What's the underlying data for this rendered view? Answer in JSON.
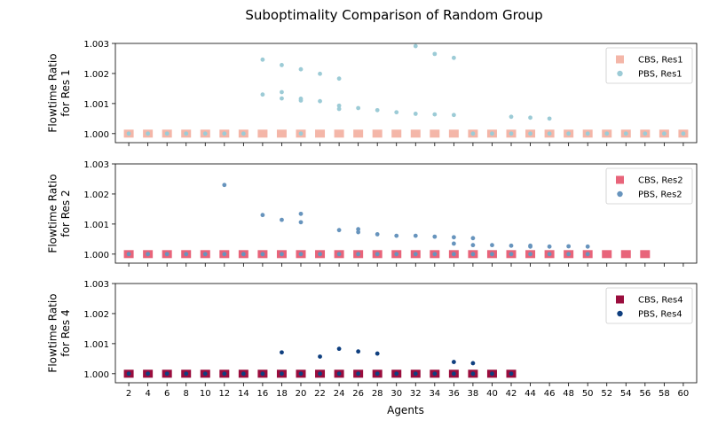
{
  "title": "Suboptimality Comparison of Random Group",
  "chart_data": {
    "type": "scatter",
    "title": "Suboptimality Comparison of Random Group",
    "xlabel": "Agents",
    "x_ticks": [
      2,
      4,
      6,
      8,
      10,
      12,
      14,
      16,
      18,
      20,
      22,
      24,
      26,
      28,
      30,
      32,
      34,
      36,
      38,
      40,
      42,
      44,
      46,
      48,
      50,
      52,
      54,
      56,
      58,
      60
    ],
    "ylim": [
      0.9997,
      1.003
    ],
    "y_ticks": [
      "1.000",
      "1.001",
      "1.002",
      "1.003"
    ],
    "legend_position": "top-right",
    "panels": [
      {
        "ylabel": [
          "Flowtime Ratio",
          "for Res 1"
        ],
        "series": [
          {
            "name": "CBS, Res1",
            "marker": "square",
            "color": "#f4b6a8",
            "x": [
              2,
              4,
              6,
              8,
              10,
              12,
              14,
              16,
              18,
              20,
              22,
              24,
              26,
              28,
              30,
              32,
              34,
              36,
              38,
              40,
              42,
              44,
              46,
              48,
              50,
              52,
              54,
              56,
              58,
              60
            ],
            "y": [
              1,
              1,
              1,
              1,
              1,
              1,
              1,
              1,
              1,
              1,
              1,
              1,
              1,
              1,
              1,
              1,
              1,
              1,
              1,
              1,
              1,
              1,
              1,
              1,
              1,
              1,
              1,
              1,
              1,
              1
            ]
          },
          {
            "name": "PBS, Res1",
            "marker": "circle",
            "color": "#9ccbd6",
            "x": [
              2,
              4,
              6,
              8,
              10,
              12,
              14,
              16,
              16,
              18,
              18,
              18,
              20,
              20,
              20,
              20,
              22,
              22,
              24,
              24,
              24,
              26,
              28,
              30,
              32,
              32,
              34,
              34,
              36,
              36,
              38,
              40,
              42,
              42,
              44,
              44,
              46,
              46,
              48,
              50,
              52,
              54,
              56,
              58,
              60
            ],
            "y": [
              1,
              1,
              1,
              1,
              1,
              1,
              1,
              1.00246,
              1.0013,
              1.00228,
              1.00138,
              1.00117,
              1.00214,
              1.00116,
              1.0011,
              1,
              1.00199,
              1.00108,
              1.00183,
              1.00093,
              1.00082,
              1.00085,
              1.00078,
              1.00071,
              1.00291,
              1.00066,
              1.00265,
              1.00064,
              1.00252,
              1.00062,
              1,
              1,
              1.00056,
              1,
              1.00053,
              1,
              1.0005,
              1,
              1,
              1,
              1,
              1,
              1,
              1,
              1
            ]
          }
        ]
      },
      {
        "ylabel": [
          "Flowtime Ratio",
          "for Res 2"
        ],
        "series": [
          {
            "name": "CBS, Res2",
            "marker": "square",
            "color": "#e8647a",
            "x": [
              2,
              4,
              6,
              8,
              10,
              12,
              14,
              16,
              18,
              20,
              22,
              24,
              26,
              28,
              30,
              32,
              34,
              36,
              38,
              40,
              42,
              44,
              46,
              48,
              50,
              52,
              54,
              56
            ],
            "y": [
              1,
              1,
              1,
              1,
              1,
              1,
              1,
              1,
              1,
              1,
              1,
              1,
              1,
              1,
              1,
              1,
              1,
              1,
              1,
              1,
              1,
              1,
              1,
              1,
              1,
              1,
              1,
              1
            ]
          },
          {
            "name": "PBS, Res2",
            "marker": "circle",
            "color": "#6794bd",
            "x": [
              2,
              4,
              6,
              8,
              10,
              12,
              12,
              14,
              16,
              16,
              18,
              18,
              20,
              20,
              20,
              22,
              24,
              24,
              26,
              26,
              26,
              28,
              28,
              30,
              30,
              32,
              32,
              34,
              34,
              36,
              36,
              36,
              38,
              38,
              38,
              40,
              40,
              42,
              42,
              44,
              44,
              44,
              46,
              46,
              48,
              48,
              50,
              50
            ],
            "y": [
              1,
              1,
              1,
              1,
              1,
              1.0023,
              1,
              1,
              1.0013,
              1,
              1.00114,
              1,
              1.00134,
              1.00106,
              1,
              1,
              1.0008,
              1,
              1.00083,
              1.00073,
              1,
              1.00066,
              1,
              1.00061,
              1,
              1.00061,
              1,
              1.00058,
              1,
              1.00056,
              1.00035,
              1,
              1.00053,
              1.0003,
              1,
              1.0003,
              1,
              1.00028,
              1,
              1.00028,
              1.00025,
              1,
              1.00025,
              1,
              1.00026,
              1,
              1.00025,
              1
            ]
          }
        ]
      },
      {
        "ylabel": [
          "Flowtime Ratio",
          "for Res 4"
        ],
        "series": [
          {
            "name": "CBS, Res4",
            "marker": "square",
            "color": "#9a0d3d",
            "x": [
              2,
              4,
              6,
              8,
              10,
              12,
              14,
              16,
              18,
              20,
              22,
              24,
              26,
              28,
              30,
              32,
              34,
              36,
              38,
              40,
              42
            ],
            "y": [
              1,
              1,
              1,
              1,
              1,
              1,
              1,
              1,
              1,
              1,
              1,
              1,
              1,
              1,
              1,
              1,
              1,
              1,
              1,
              1,
              1
            ]
          },
          {
            "name": "PBS, Res4",
            "marker": "circle",
            "color": "#0f3f7f",
            "x": [
              2,
              4,
              6,
              8,
              10,
              12,
              14,
              16,
              18,
              18,
              20,
              22,
              22,
              24,
              24,
              26,
              26,
              28,
              28,
              30,
              32,
              34,
              36,
              36,
              38,
              38,
              40,
              42
            ],
            "y": [
              1,
              1,
              1,
              1,
              1,
              1,
              1,
              1,
              1.00071,
              1,
              1,
              1.00057,
              1,
              1.00083,
              1,
              1.00074,
              1,
              1.00067,
              1,
              1,
              1,
              1,
              1.00039,
              1,
              1.00035,
              1,
              1,
              1
            ]
          }
        ]
      }
    ]
  }
}
